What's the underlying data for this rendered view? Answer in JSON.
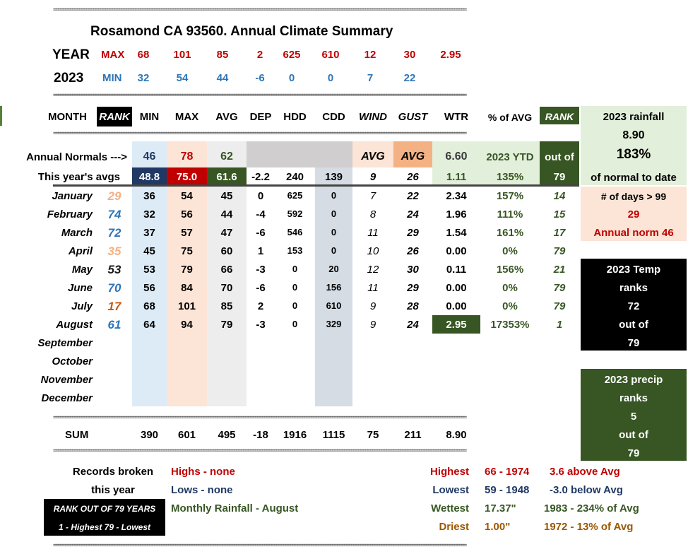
{
  "sep": "================================================================================================================================================================================",
  "title": "Rosamond CA 93560.  Annual Climate Summary",
  "year_label": "YEAR",
  "year_value": "2023",
  "max_label": "MAX",
  "min_label": "MIN",
  "max_vals": [
    "68",
    "101",
    "85",
    "2",
    "625",
    "610",
    "12",
    "30",
    "2.95"
  ],
  "min_vals": [
    "32",
    "54",
    "44",
    "-6",
    "0",
    "0",
    "7",
    "22"
  ],
  "headers": {
    "month": "MONTH",
    "rank": "RANK",
    "min": "MIN",
    "max": "MAX",
    "avg": "AVG",
    "dep": "DEP",
    "hdd": "HDD",
    "cdd": "CDD",
    "wind": "WIND",
    "gust": "GUST",
    "wtr": "WTR",
    "pct": "% of AVG",
    "rank2": "RANK"
  },
  "normals": {
    "label": "Annual Normals --->",
    "min": "46",
    "max": "78",
    "avg": "62",
    "wind": "AVG",
    "gust": "AVG",
    "wtr": "6.60",
    "ytd": "2023 YTD",
    "outof": "out of"
  },
  "this_year": {
    "label": "This year's avgs",
    "min": "48.8",
    "max": "75.0",
    "avg": "61.6",
    "dep": "-2.2",
    "hdd": "240",
    "cdd": "139",
    "wind": "9",
    "gust": "26",
    "wtr": "1.11",
    "pct": "135%",
    "rank": "79"
  },
  "months": [
    {
      "name": "January",
      "rank": "29",
      "rank_color": "#f4b183",
      "min": "36",
      "max": "54",
      "avg": "45",
      "dep": "0",
      "hdd": "625",
      "cdd": "0",
      "wind": "7",
      "gust": "22",
      "wtr": "2.34",
      "pct": "157%",
      "prank": "14"
    },
    {
      "name": "February",
      "rank": "74",
      "rank_color": "#2e75b6",
      "min": "32",
      "max": "56",
      "avg": "44",
      "dep": "-4",
      "hdd": "592",
      "cdd": "0",
      "wind": "8",
      "gust": "24",
      "wtr": "1.96",
      "pct": "111%",
      "prank": "15"
    },
    {
      "name": "March",
      "rank": "72",
      "rank_color": "#2e75b6",
      "min": "37",
      "max": "57",
      "avg": "47",
      "dep": "-6",
      "hdd": "546",
      "cdd": "0",
      "wind": "11",
      "gust": "29",
      "wtr": "1.54",
      "pct": "161%",
      "prank": "17"
    },
    {
      "name": "April",
      "rank": "35",
      "rank_color": "#f4b183",
      "min": "45",
      "max": "75",
      "avg": "60",
      "dep": "1",
      "hdd": "153",
      "cdd": "0",
      "wind": "10",
      "gust": "26",
      "wtr": "0.00",
      "pct": "0%",
      "prank": "79"
    },
    {
      "name": "May",
      "rank": "53",
      "rank_color": "#1a1a1a",
      "min": "53",
      "max": "79",
      "avg": "66",
      "dep": "-3",
      "hdd": "0",
      "cdd": "20",
      "wind": "12",
      "gust": "30",
      "wtr": "0.11",
      "pct": "156%",
      "prank": "21"
    },
    {
      "name": "June",
      "rank": "70",
      "rank_color": "#2e75b6",
      "min": "56",
      "max": "84",
      "avg": "70",
      "dep": "-6",
      "hdd": "0",
      "cdd": "156",
      "wind": "11",
      "gust": "29",
      "wtr": "0.00",
      "pct": "0%",
      "prank": "79"
    },
    {
      "name": "July",
      "rank": "17",
      "rank_color": "#c55a11",
      "min": "68",
      "max": "101",
      "avg": "85",
      "dep": "2",
      "hdd": "0",
      "cdd": "610",
      "wind": "9",
      "gust": "28",
      "wtr": "0.00",
      "pct": "0%",
      "prank": "79"
    },
    {
      "name": "August",
      "rank": "61",
      "rank_color": "#2e75b6",
      "min": "64",
      "max": "94",
      "avg": "79",
      "dep": "-3",
      "hdd": "0",
      "cdd": "329",
      "wind": "9",
      "gust": "24",
      "wtr": "2.95",
      "pct": "17353%",
      "prank": "1"
    },
    {
      "name": "September"
    },
    {
      "name": "October"
    },
    {
      "name": "November"
    },
    {
      "name": "December"
    }
  ],
  "sum": {
    "label": "SUM",
    "min": "390",
    "max": "601",
    "avg": "495",
    "dep": "-18",
    "hdd": "1916",
    "cdd": "1115",
    "wind": "75",
    "gust": "211",
    "wtr": "8.90"
  },
  "right": {
    "rain_title": "2023 rainfall",
    "rain_total": "8.90",
    "rain_pct": "183%",
    "rain_note": "of normal to date",
    "days_label": "# of days  > 99",
    "days_val": "29",
    "annual_norm": "Annual norm 46",
    "temp_title": "2023 Temp",
    "temp_ranks": "ranks",
    "temp_rank": "72",
    "temp_outof": "out of",
    "temp_total": "79",
    "precip_title": "2023 precip",
    "precip_ranks": "ranks",
    "precip_rank": "5",
    "precip_outof": "out of",
    "precip_total": "79"
  },
  "records": {
    "label1": "Records broken",
    "label2": "this year",
    "highs": "Highs - none",
    "lows": "Lows - none",
    "rain": "Monthly Rainfall - August",
    "legend1": "RANK OUT OF 79 YEARS",
    "legend2": "1 - Highest  79 - Lowest"
  },
  "extremes": [
    {
      "label": "Highest",
      "value": "66 - 1974",
      "note": "3.6 above Avg",
      "color": "#c00000"
    },
    {
      "label": "Lowest",
      "value": "59 - 1948",
      "note": "-3.0 below Avg",
      "color": "#1f3864"
    },
    {
      "label": "Wettest",
      "value": "17.37\"",
      "note": "1983 - 234% of Avg",
      "color": "#375623"
    },
    {
      "label": "Driest",
      "value": "1.00\"",
      "note": "1972 - 13% of Avg",
      "color": "#9c5700"
    }
  ],
  "colors": {
    "min_col": "#ddebf7",
    "max_col": "#fce4d6",
    "avg_col": "#ededed",
    "cdd_col": "#d6dce4",
    "normal_bar": "#d0cece",
    "avg_peach": "#f4b183",
    "rain_green": "#e2efda",
    "dark_green": "#375623",
    "navy": "#1f3864",
    "red": "#c00000",
    "pink": "#fce4d6"
  }
}
